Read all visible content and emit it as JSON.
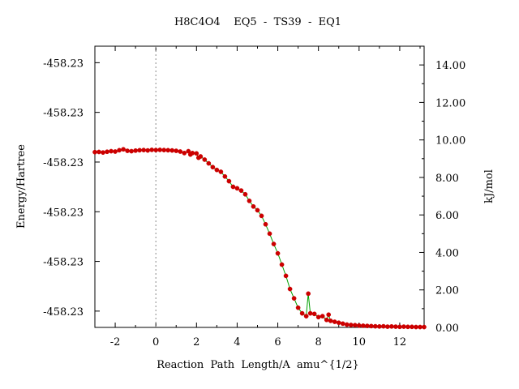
{
  "chart_data": {
    "type": "line",
    "title": "H8C4O4    EQ5  -  TS39  -  EQ1",
    "xlabel": "Reaction  Path  Length/A  amu^{1/2}",
    "ylabel": "Energy/Hartree",
    "y2label": "kJ/mol",
    "xlim": [
      -3.0,
      13.2
    ],
    "x_ticks": [
      -2,
      0,
      2,
      4,
      6,
      8,
      10,
      12
    ],
    "x_tick_labels": [
      "-2",
      "0",
      "2",
      "4",
      "6",
      "8",
      "10",
      "12"
    ],
    "y2lim": [
      0,
      15.0
    ],
    "y2_ticks": [
      0,
      2,
      4,
      6,
      8,
      10,
      12,
      14
    ],
    "y2_tick_labels": [
      "0.00",
      "2.00",
      "4.00",
      "6.00",
      "8.00",
      "10.00",
      "12.00",
      "14.00"
    ],
    "y_left_tick_positions_kj": [
      0.87,
      3.52,
      6.17,
      8.82,
      11.47,
      14.12
    ],
    "y_left_tick_labels": [
      "-458.23",
      "-458.23",
      "-458.23",
      "-458.23",
      "-458.23",
      "-458.23"
    ],
    "reference_line_x": 0,
    "grid": false,
    "colors": {
      "line": "#00a000",
      "marker": "#cc0000",
      "reference": "#888888",
      "axis": "#000000"
    },
    "series": [
      {
        "x": [
          -3.0,
          -2.8,
          -2.6,
          -2.4,
          -2.2,
          -2.0,
          -1.8,
          -1.6,
          -1.4,
          -1.2,
          -1.0,
          -0.8,
          -0.6,
          -0.4,
          -0.2,
          0.0,
          0.2,
          0.4,
          0.6,
          0.8,
          1.0,
          1.2,
          1.4,
          1.6,
          1.7,
          1.8,
          2.0,
          2.1,
          2.2,
          2.4,
          2.6,
          2.8,
          3.0,
          3.2,
          3.4,
          3.6,
          3.8,
          4.0,
          4.2,
          4.4,
          4.6,
          4.8,
          5.0,
          5.2,
          5.4,
          5.6,
          5.8,
          6.0,
          6.2,
          6.4,
          6.6,
          6.8,
          7.0,
          7.2,
          7.4,
          7.5,
          7.6,
          7.8,
          8.0,
          8.2,
          8.4,
          8.5,
          8.6,
          8.8,
          9.0,
          9.2,
          9.4,
          9.6,
          9.8,
          10.0,
          10.2,
          10.4,
          10.6,
          10.8,
          11.0,
          11.2,
          11.4,
          11.6,
          11.8,
          12.0,
          12.2,
          12.4,
          12.6,
          12.8,
          13.0,
          13.2
        ],
        "y": [
          9.35,
          9.36,
          9.33,
          9.37,
          9.4,
          9.38,
          9.45,
          9.5,
          9.42,
          9.4,
          9.43,
          9.45,
          9.46,
          9.44,
          9.47,
          9.46,
          9.47,
          9.46,
          9.45,
          9.44,
          9.42,
          9.38,
          9.3,
          9.4,
          9.22,
          9.3,
          9.28,
          9.05,
          9.12,
          8.95,
          8.75,
          8.55,
          8.4,
          8.3,
          8.05,
          7.8,
          7.5,
          7.42,
          7.3,
          7.1,
          6.75,
          6.45,
          6.25,
          5.95,
          5.5,
          5.0,
          4.45,
          3.95,
          3.35,
          2.75,
          2.05,
          1.55,
          1.05,
          0.75,
          0.6,
          1.8,
          0.75,
          0.72,
          0.55,
          0.6,
          0.4,
          0.68,
          0.35,
          0.3,
          0.25,
          0.2,
          0.15,
          0.13,
          0.12,
          0.1,
          0.09,
          0.08,
          0.07,
          0.06,
          0.05,
          0.06,
          0.04,
          0.05,
          0.04,
          0.03,
          0.04,
          0.03,
          0.03,
          0.02,
          0.02,
          0.02
        ]
      }
    ]
  }
}
